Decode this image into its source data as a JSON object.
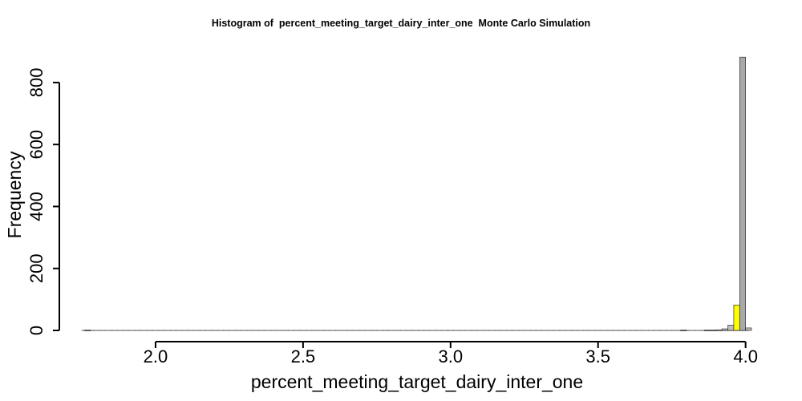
{
  "chart_data": {
    "type": "bar",
    "title": "Histogram of  percent_meeting_target_dairy_inter_one  Monte Carlo Simulation",
    "xlabel": "percent_meeting_target_dairy_inter_one",
    "ylabel": "Frequency",
    "xlim": [
      1.75,
      4.02
    ],
    "ylim": [
      0,
      880
    ],
    "xticks": [
      "2.0",
      "2.5",
      "3.0",
      "3.5",
      "4.0"
    ],
    "yticks": [
      "0",
      "200",
      "400",
      "600",
      "800"
    ],
    "bin_width": 0.02,
    "bins": [
      {
        "x0": 1.76,
        "x1": 1.78,
        "count": 1,
        "fill": "#bebebe"
      },
      {
        "x0": 3.78,
        "x1": 3.8,
        "count": 1,
        "fill": "#bebebe"
      },
      {
        "x0": 3.86,
        "x1": 3.88,
        "count": 1,
        "fill": "#bebebe"
      },
      {
        "x0": 3.88,
        "x1": 3.9,
        "count": 1,
        "fill": "#bebebe"
      },
      {
        "x0": 3.9,
        "x1": 3.92,
        "count": 2,
        "fill": "#bebebe"
      },
      {
        "x0": 3.92,
        "x1": 3.94,
        "count": 5,
        "fill": "#bebebe"
      },
      {
        "x0": 3.94,
        "x1": 3.96,
        "count": 17,
        "fill": "#bebebe"
      },
      {
        "x0": 3.96,
        "x1": 3.98,
        "count": 82,
        "fill": "#ffff00"
      },
      {
        "x0": 3.98,
        "x1": 4.0,
        "count": 882,
        "fill": "#a9a9a9"
      },
      {
        "x0": 4.0,
        "x1": 4.02,
        "count": 8,
        "fill": "#bebebe"
      }
    ]
  }
}
